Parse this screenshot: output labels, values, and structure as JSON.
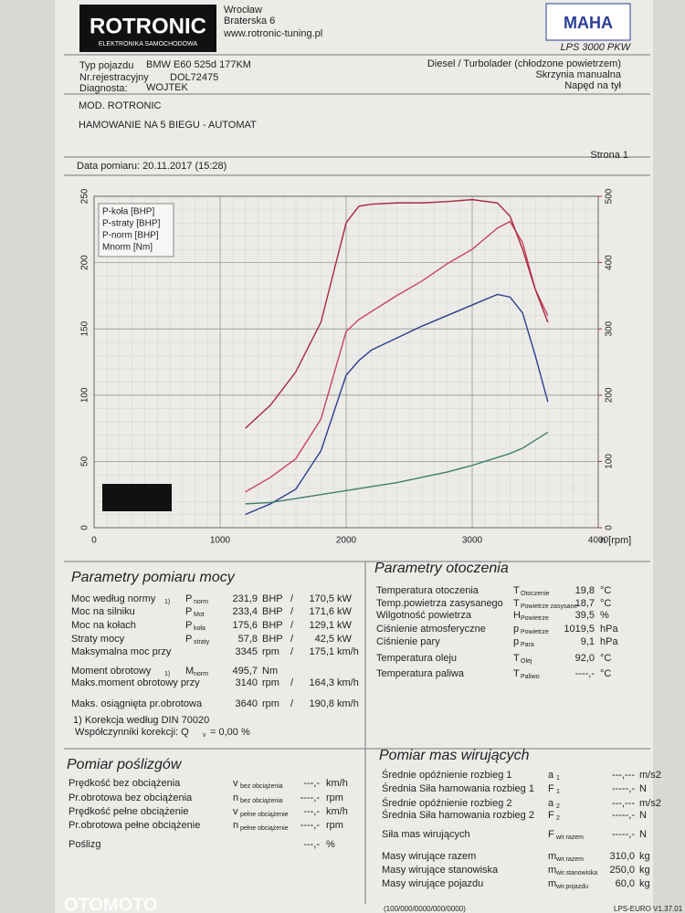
{
  "header": {
    "logo": "ROTRONIC",
    "logo_sub": "ELEKTRONIKA SAMOCHODOWA",
    "address": [
      "Wrocław",
      "Braterska 6",
      "www.rotronic-tuning.pl"
    ],
    "brand": "MAHA",
    "model": "LPS 3000 PKW"
  },
  "vehicle": {
    "fields": [
      {
        "label": "Typ pojazdu",
        "value": "BMW E60 525d 177KM"
      },
      {
        "label": "Nr.rejestracyjny",
        "value": "DOL72475"
      },
      {
        "label": "Diagnosta:",
        "value": "WOJTEK"
      }
    ],
    "details": [
      "Diesel / Turbolader (chłodzone powietrzem)",
      "Skrzynia manualna",
      "Napęd na tył"
    ]
  },
  "notes": [
    "MOD. ROTRONIC",
    "HAMOWANIE NA 5 BIEGU - AUTOMAT"
  ],
  "date": "Data pomiaru: 20.11.2017 (15:28)",
  "page": "Strona 1",
  "chart_data": {
    "type": "line",
    "x_label": "n [rpm]",
    "x": [
      1200,
      1400,
      1600,
      1800,
      2000,
      2100,
      2200,
      2400,
      2600,
      2800,
      3000,
      3200,
      3300,
      3400,
      3500,
      3600
    ],
    "xlim": [
      0,
      4000
    ],
    "xticks": [
      0,
      1000,
      2000,
      3000,
      4000
    ],
    "ylim": [
      0,
      250
    ],
    "yticks": [
      0,
      50,
      100,
      150,
      200,
      250
    ],
    "y2lim": [
      0,
      500
    ],
    "y2ticks": [
      0,
      100,
      200,
      300,
      400,
      500
    ],
    "grid": true,
    "series": [
      {
        "name": "P-koła [BHP]",
        "color": "#2b3f8f",
        "values": [
          10,
          18,
          29,
          58,
          115,
          126,
          134,
          143,
          152,
          160,
          168,
          176,
          174,
          162,
          130,
          95
        ]
      },
      {
        "name": "P-straty [BHP]",
        "color": "#3f7f6a",
        "values": [
          18,
          19,
          22,
          25,
          28,
          29.5,
          31,
          34,
          38,
          42,
          47,
          53,
          56,
          60,
          66,
          72
        ]
      },
      {
        "name": "P-norm [BHP]",
        "color": "#c8435e",
        "values": [
          27,
          38,
          52,
          82,
          148,
          157,
          163,
          175,
          186,
          199,
          210,
          226,
          231,
          215,
          180,
          160
        ]
      },
      {
        "name": "Mnorm [Nm]",
        "color": "#a8283f",
        "axis": "y2",
        "values": [
          150,
          185,
          235,
          310,
          460,
          485,
          488,
          490,
          490,
          492,
          495,
          490,
          470,
          420,
          360,
          310
        ]
      }
    ]
  },
  "measurement": {
    "title": "Parametry pomiaru mocy",
    "rows": [
      {
        "label": "Moc według normy",
        "note": "1)",
        "symbol": "P",
        "sub": "norm",
        "value": "231,9",
        "unit": "BHP",
        "sep": "/",
        "value2": "170,5",
        "unit2": "kW",
        "color": "#c0283a"
      },
      {
        "label": "Moc na silniku",
        "symbol": "P",
        "sub": "Mot",
        "value": "233,4",
        "unit": "BHP",
        "sep": "/",
        "value2": "171,6",
        "unit2": "kW",
        "color": "#c0283a"
      },
      {
        "label": "Moc na kołach",
        "symbol": "P",
        "sub": "koła",
        "value": "175,6",
        "unit": "BHP",
        "sep": "/",
        "value2": "129,1",
        "unit2": "kW",
        "color": "#2b3f8f"
      },
      {
        "label": "Straty mocy",
        "symbol": "P",
        "sub": "straty",
        "value": "57,8",
        "unit": "BHP",
        "sep": "/",
        "value2": "42,5",
        "unit2": "kW",
        "color": "#3f7f4a"
      },
      {
        "label": "Maksymalna moc przy",
        "value": "3345",
        "unit": "rpm",
        "sep": "/",
        "value2": "175,1",
        "unit2": "km/h"
      },
      {
        "label": "Moment obrotowy",
        "note": "1)",
        "symbol": "M",
        "sub": "norm",
        "value": "495,7",
        "unit": "Nm",
        "color": "#c0283a"
      },
      {
        "label": "Maks.moment obrotowy przy",
        "value": "3140",
        "unit": "rpm",
        "sep": "/",
        "value2": "164,3",
        "unit2": "km/h"
      },
      {
        "label": "Maks. osiągnięta pr.obrotowa",
        "value": "3640",
        "unit": "rpm",
        "sep": "/",
        "value2": "190,8",
        "unit2": "km/h"
      }
    ],
    "footnote": "1) Korekcja według DIN 70020",
    "correction": {
      "label": "Współczynniki korekcji: Q",
      "sub": "v",
      "value": "=  0,00 %"
    }
  },
  "ambient": {
    "title": "Parametry otoczenia",
    "rows": [
      {
        "label": "Temperatura otoczenia",
        "symbol": "T",
        "sub": "Otoczenie",
        "value": "19,8",
        "unit": "°C"
      },
      {
        "label": "Temp.powietrza zasysanego",
        "symbol": "T",
        "sub": "Powietrze zasysane",
        "value": "18,7",
        "unit": "°C"
      },
      {
        "label": "Wilgotność powietrza",
        "symbol": "H",
        "sub": "Powietrze",
        "value": "39,5",
        "unit": "%"
      },
      {
        "label": "Ciśnienie atmosferyczne",
        "symbol": "p",
        "sub": "Powietrze",
        "value": "1019,5",
        "unit": "hPa"
      },
      {
        "label": "Ciśnienie pary",
        "symbol": "p",
        "sub": "Para",
        "value": "9,1",
        "unit": "hPa"
      },
      {
        "label": "Temperatura oleju",
        "symbol": "T",
        "sub": "Olej",
        "value": "92,0",
        "unit": "°C"
      },
      {
        "label": "Temperatura paliwa",
        "symbol": "T",
        "sub": "Paliwo",
        "value": "----,-",
        "unit": "°C"
      }
    ]
  },
  "slip": {
    "title": "Pomiar poślizgów",
    "rows": [
      {
        "label": "Prędkość bez obciążenia",
        "symbol": "v",
        "sub": "bez obciążenia",
        "value": "---,-",
        "unit": "km/h"
      },
      {
        "label": "Pr.obrotowa bez obciążenia",
        "symbol": "n",
        "sub": "bez obciążenia",
        "value": "----,-",
        "unit": "rpm"
      },
      {
        "label": "Prędkość pełne obciążenie",
        "symbol": "v",
        "sub": "pełne obciążenie",
        "value": "---,-",
        "unit": "km/h"
      },
      {
        "label": "Pr.obrotowa pełne obciążenie",
        "symbol": "n",
        "sub": "pełne obciążenie",
        "value": "----,-",
        "unit": "rpm"
      },
      {
        "label": "Poślizg",
        "value": "---,-",
        "unit": "%"
      }
    ]
  },
  "inertia": {
    "title": "Pomiar mas wirujących",
    "rows": [
      {
        "label": "Średnie opóźnienie rozbieg 1",
        "symbol": "a",
        "sub": "1",
        "value": "---,---",
        "unit": "m/s2"
      },
      {
        "label": "Średnia Siła hamowania rozbieg 1",
        "symbol": "F",
        "sub": "1",
        "value": "-----,-",
        "unit": "N"
      },
      {
        "label": "Średnie opóźnienie rozbieg 2",
        "symbol": "a",
        "sub": "2",
        "value": "---,---",
        "unit": "m/s2"
      },
      {
        "label": "Średnia Siła hamowania rozbieg 2",
        "symbol": "F",
        "sub": "2",
        "value": "-----,-",
        "unit": "N"
      },
      {
        "label": "Siła mas wirujących",
        "symbol": "F",
        "sub": "wir.razem",
        "value": "-----,-",
        "unit": "N"
      },
      {
        "label": "Masy wirujące razem",
        "symbol": "m",
        "sub": "wir.razem",
        "value": "310,0",
        "unit": "kg"
      },
      {
        "label": "Masy wirujące stanowiska",
        "symbol": "m",
        "sub": "wir.stanowiska",
        "value": "250,0",
        "unit": "kg"
      },
      {
        "label": "Masy wirujące pojazdu",
        "symbol": "m",
        "sub": "wir.pojazdu",
        "value": "60,0",
        "unit": "kg"
      }
    ]
  },
  "footer": {
    "code": "(100/000/0000/000/0000)",
    "version": "LPS-EURO V1.37.01",
    "watermark": "OTOMOTO"
  }
}
